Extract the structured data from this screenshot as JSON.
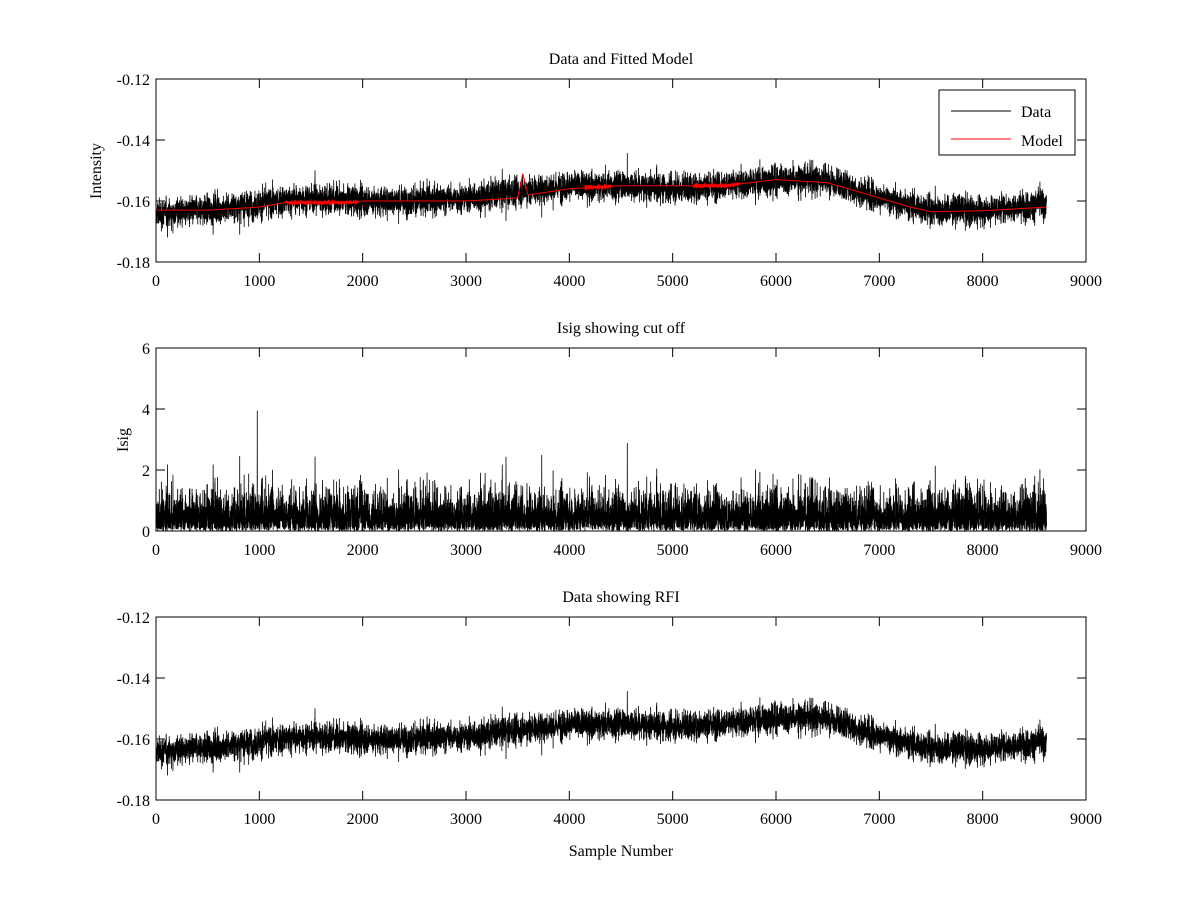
{
  "chart_data": [
    {
      "type": "line",
      "title": "Data and Fitted Model",
      "xlabel": "",
      "ylabel": "Intensity",
      "xlim": [
        0,
        9000
      ],
      "ylim": [
        -0.18,
        -0.12
      ],
      "xticks": [
        0,
        1000,
        2000,
        3000,
        4000,
        5000,
        6000,
        7000,
        8000,
        9000
      ],
      "xtick_labels": [
        "0",
        "1000",
        "2000",
        "3000",
        "4000",
        "5000",
        "6000",
        "7000",
        "8000",
        "9000"
      ],
      "yticks": [
        -0.18,
        -0.16,
        -0.14,
        -0.12
      ],
      "ytick_labels": [
        "-0.18",
        "-0.16",
        "-0.14",
        "-0.12"
      ],
      "grid": false,
      "legend": {
        "position": "top-right",
        "entries": [
          {
            "label": "Data",
            "color": "#000000"
          },
          {
            "label": "Model",
            "color": "#ff0000"
          }
        ]
      },
      "n_samples": 8620,
      "series": [
        {
          "name": "Data",
          "color": "#000000",
          "description": "noisy signal around baseline, noise amplitude ~0.006",
          "baseline_x": [
            0,
            500,
            1000,
            1500,
            2000,
            2500,
            3000,
            3500,
            4000,
            4500,
            5000,
            5500,
            6000,
            6500,
            7000,
            7500,
            8000,
            8620
          ],
          "baseline_y": [
            -0.164,
            -0.163,
            -0.161,
            -0.159,
            -0.16,
            -0.16,
            -0.159,
            -0.157,
            -0.155,
            -0.155,
            -0.156,
            -0.155,
            -0.153,
            -0.153,
            -0.159,
            -0.163,
            -0.163,
            -0.161
          ],
          "noise_sd": 0.0045
        },
        {
          "name": "Model",
          "color": "#ff0000",
          "x": [
            0,
            500,
            1000,
            1250,
            1500,
            1900,
            2000,
            2500,
            3000,
            3500,
            3550,
            3600,
            4000,
            4500,
            5000,
            5500,
            6000,
            6500,
            6800,
            7000,
            7300,
            7500,
            8000,
            8620
          ],
          "y": [
            -0.163,
            -0.163,
            -0.162,
            -0.1605,
            -0.1605,
            -0.1605,
            -0.16,
            -0.16,
            -0.16,
            -0.159,
            -0.151,
            -0.158,
            -0.156,
            -0.155,
            -0.155,
            -0.155,
            -0.153,
            -0.154,
            -0.157,
            -0.159,
            -0.162,
            -0.1635,
            -0.1632,
            -0.162
          ],
          "noisy_segments": [
            [
              1250,
              1950
            ],
            [
              4150,
              4400
            ],
            [
              5200,
              5650
            ]
          ]
        }
      ]
    },
    {
      "type": "line",
      "title": "Isig showing cut off",
      "xlabel": "",
      "ylabel": "Isig",
      "xlim": [
        0,
        9000
      ],
      "ylim": [
        0,
        6
      ],
      "xticks": [
        0,
        1000,
        2000,
        3000,
        4000,
        5000,
        6000,
        7000,
        8000,
        9000
      ],
      "xtick_labels": [
        "0",
        "1000",
        "2000",
        "3000",
        "4000",
        "5000",
        "6000",
        "7000",
        "8000",
        "9000"
      ],
      "yticks": [
        0,
        2,
        4,
        6
      ],
      "ytick_labels": [
        "0",
        "2",
        "4",
        "6"
      ],
      "grid": false,
      "n_samples": 8620,
      "series": [
        {
          "name": "Isig",
          "color": "#000000",
          "description": "absolute normalized deviation, mostly 0-2.5, peaks to ~3.9 near sample 980",
          "typical_max": 2.5,
          "peak_max": 3.95
        }
      ]
    },
    {
      "type": "line",
      "title": "Data showing RFI",
      "xlabel": "Sample Number",
      "ylabel": "",
      "xlim": [
        0,
        9000
      ],
      "ylim": [
        -0.18,
        -0.12
      ],
      "xticks": [
        0,
        1000,
        2000,
        3000,
        4000,
        5000,
        6000,
        7000,
        8000,
        9000
      ],
      "xtick_labels": [
        "0",
        "1000",
        "2000",
        "3000",
        "4000",
        "5000",
        "6000",
        "7000",
        "8000",
        "9000"
      ],
      "yticks": [
        -0.18,
        -0.16,
        -0.14,
        -0.12
      ],
      "ytick_labels": [
        "-0.18",
        "-0.16",
        "-0.14",
        "-0.12"
      ],
      "grid": false,
      "n_samples": 8620,
      "series": [
        {
          "name": "Data",
          "color": "#000000",
          "description": "same raw data as top panel"
        }
      ]
    }
  ]
}
